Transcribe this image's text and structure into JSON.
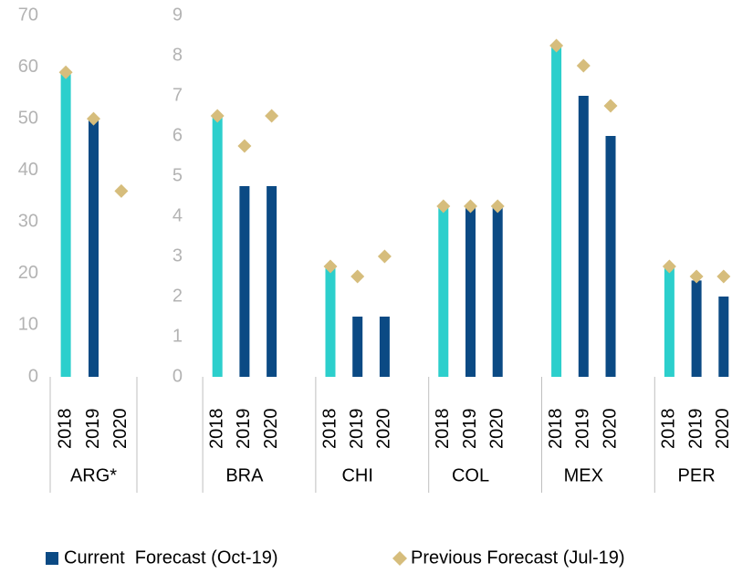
{
  "chart_data": [
    {
      "type": "bar",
      "ylim": [
        0,
        70
      ],
      "yticks": [
        0,
        10,
        20,
        30,
        40,
        50,
        60,
        70
      ],
      "groups": [
        {
          "label": "ARG*",
          "categories": [
            "2018",
            "2019",
            "2020"
          ]
        }
      ],
      "series": [
        {
          "kind": "bar",
          "color": "#0b4a84",
          "colors": [
            "#2ccfcc",
            "#0b4a84",
            "#0b4a84"
          ],
          "values": [
            59,
            50,
            null
          ]
        },
        {
          "kind": "marker",
          "color": "#d6bd7c",
          "values": [
            59,
            50,
            36
          ]
        }
      ]
    },
    {
      "type": "bar",
      "ylim": [
        0,
        9
      ],
      "yticks": [
        0,
        1,
        2,
        3,
        4,
        5,
        6,
        7,
        8,
        9
      ],
      "groups": [
        {
          "label": "BRA",
          "categories": [
            "2018",
            "2019",
            "2020"
          ]
        },
        {
          "label": "CHI",
          "categories": [
            "2018",
            "2019",
            "2020"
          ]
        },
        {
          "label": "COL",
          "categories": [
            "2018",
            "2019",
            "2020"
          ]
        },
        {
          "label": "MEX",
          "categories": [
            "2018",
            "2019",
            "2020"
          ]
        },
        {
          "label": "PER",
          "categories": [
            "2018",
            "2019",
            "2020"
          ]
        }
      ],
      "series": [
        {
          "name": "Current  Forecast (Oct-19)",
          "kind": "bar",
          "color": "#0b4a84",
          "colors": [
            "#2ccfcc",
            "#0b4a84",
            "#0b4a84",
            "#2ccfcc",
            "#0b4a84",
            "#0b4a84",
            "#2ccfcc",
            "#0b4a84",
            "#0b4a84",
            "#2ccfcc",
            "#0b4a84",
            "#0b4a84",
            "#2ccfcc",
            "#0b4a84",
            "#0b4a84"
          ],
          "values": [
            6.5,
            4.75,
            4.75,
            2.75,
            1.5,
            1.5,
            4.25,
            4.25,
            4.25,
            8.25,
            7,
            6,
            2.75,
            2.4,
            2
          ]
        },
        {
          "name": "Previous Forecast (Jul-19)",
          "kind": "marker",
          "color": "#d6bd7c",
          "values": [
            6.5,
            5.75,
            6.5,
            2.75,
            2.5,
            3,
            4.25,
            4.25,
            4.25,
            8.25,
            7.75,
            6.75,
            2.75,
            2.5,
            2.5
          ]
        }
      ]
    }
  ]
}
